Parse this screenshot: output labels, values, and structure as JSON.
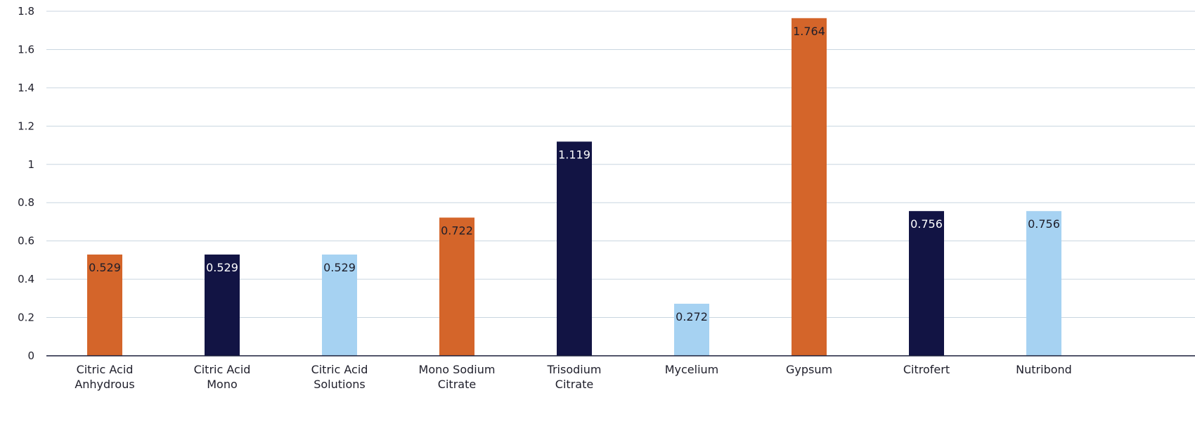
{
  "chart_data": {
    "type": "bar",
    "title": "",
    "xlabel": "",
    "ylabel": "",
    "ylim": [
      0,
      1.8
    ],
    "yticks": [
      0,
      0.2,
      0.4,
      0.6,
      0.8,
      1,
      1.2,
      1.4,
      1.6,
      1.8
    ],
    "grid": true,
    "legend": "none",
    "categories": [
      [
        "Citric Acid",
        "Anhydrous"
      ],
      [
        "Citric Acid",
        "Mono"
      ],
      [
        "Citric Acid",
        "Solutions"
      ],
      [
        "Mono Sodium",
        "Citrate"
      ],
      [
        "Trisodium",
        "Citrate"
      ],
      [
        "Mycelium"
      ],
      [
        "Gypsum"
      ],
      [
        "Citrofert"
      ],
      [
        "Nutribond"
      ]
    ],
    "values": [
      0.529,
      0.529,
      0.529,
      0.722,
      1.119,
      0.272,
      1.764,
      0.756,
      0.756
    ],
    "data_labels": [
      "0.529",
      "0.529",
      "0.529",
      "0.722",
      "1.119",
      "0.272",
      "1.764",
      "0.756",
      "0.756"
    ],
    "bar_colors": [
      "#d4652a",
      "#121444",
      "#a6d2f2",
      "#d4652a",
      "#121444",
      "#a6d2f2",
      "#d4652a",
      "#121444",
      "#a6d2f2"
    ],
    "label_colors": [
      "#1e1e2a",
      "#ffffff",
      "#1e1e2a",
      "#1e1e2a",
      "#ffffff",
      "#1e1e2a",
      "#1e1e2a",
      "#ffffff",
      "#1e1e2a"
    ]
  }
}
